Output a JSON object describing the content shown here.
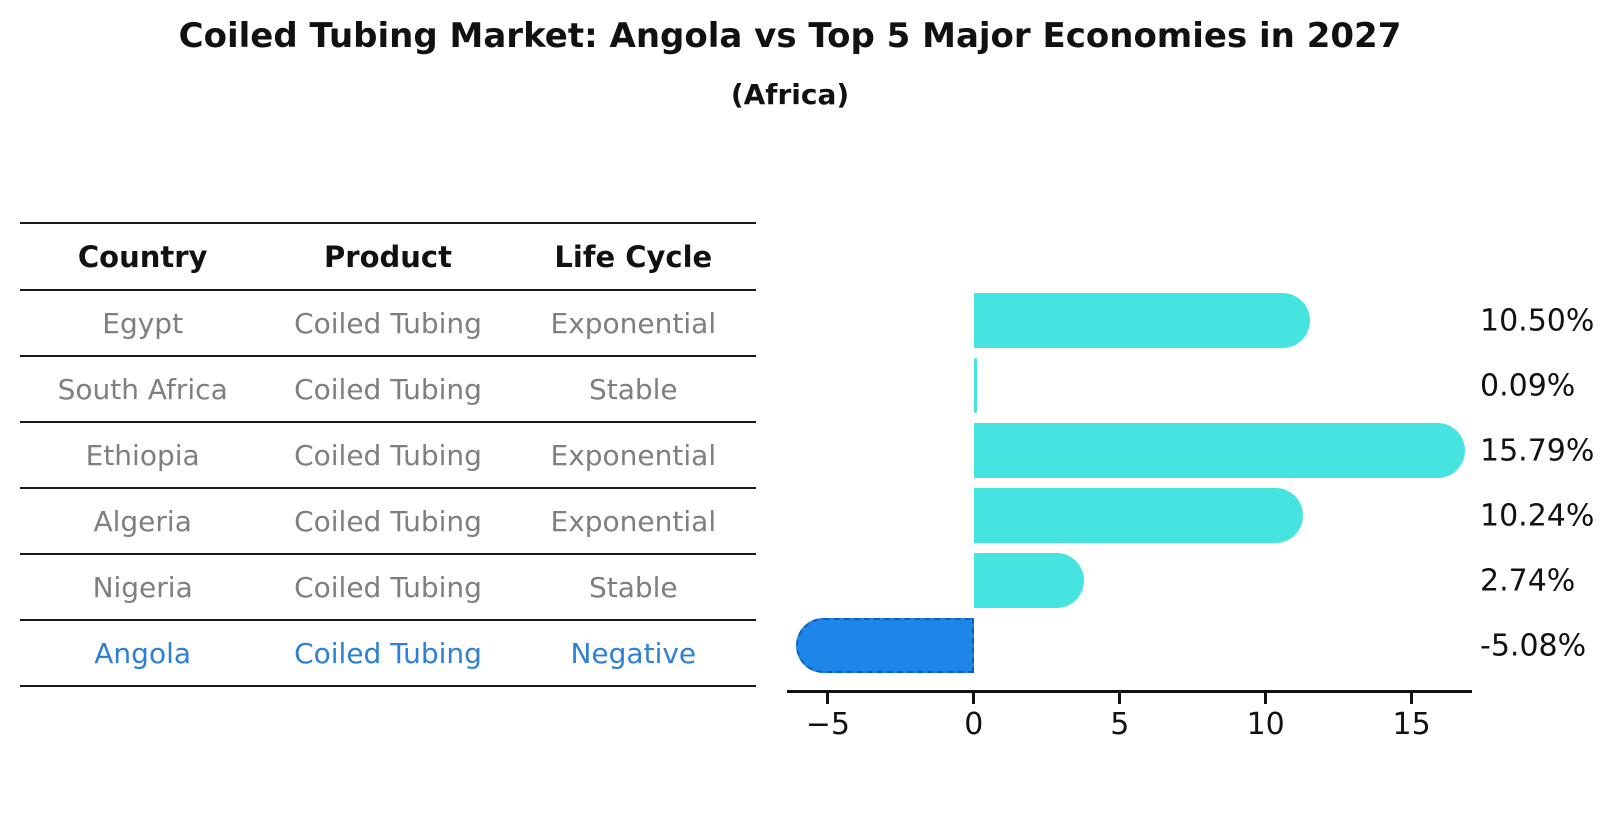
{
  "title": "Coiled Tubing Market: Angola vs Top 5 Major Economies in 2027",
  "subtitle": "(Africa)",
  "table": {
    "headers": [
      "Country",
      "Product",
      "Life Cycle"
    ],
    "rows": [
      {
        "cells": [
          "Egypt",
          "Coiled Tubing",
          "Exponential"
        ],
        "highlight": false
      },
      {
        "cells": [
          "South Africa",
          "Coiled Tubing",
          "Stable"
        ],
        "highlight": false
      },
      {
        "cells": [
          "Ethiopia",
          "Coiled Tubing",
          "Exponential"
        ],
        "highlight": false
      },
      {
        "cells": [
          "Algeria",
          "Coiled Tubing",
          "Exponential"
        ],
        "highlight": false
      },
      {
        "cells": [
          "Nigeria",
          "Coiled Tubing",
          "Stable"
        ],
        "highlight": false
      },
      {
        "cells": [
          "Angola",
          "Coiled Tubing",
          "Negative"
        ],
        "highlight": true
      }
    ]
  },
  "chart_data": {
    "type": "bar",
    "orientation": "horizontal",
    "categories": [
      "Egypt",
      "South Africa",
      "Ethiopia",
      "Algeria",
      "Nigeria",
      "Angola"
    ],
    "values": [
      10.5,
      0.09,
      15.79,
      10.24,
      2.74,
      -5.08
    ],
    "value_labels": [
      "10.50%",
      "0.09%",
      "15.79%",
      "10.24%",
      "2.74%",
      "-5.08%"
    ],
    "x_ticks": [
      -5,
      0,
      5,
      10,
      15
    ],
    "x_tick_labels": [
      "−5",
      "0",
      "5",
      "10",
      "15"
    ],
    "xlim": [
      -6.4,
      17.0
    ],
    "grid": false,
    "legend": null,
    "xlabel": "",
    "ylabel": ""
  },
  "colors": {
    "positive_bar": "#46e4e0",
    "negative_bar": "#1e86e8",
    "negative_bar_border": "#0d5ec2",
    "highlight_text": "#2e80d4",
    "table_text": "#7f7f7f",
    "ink": "#111111"
  }
}
